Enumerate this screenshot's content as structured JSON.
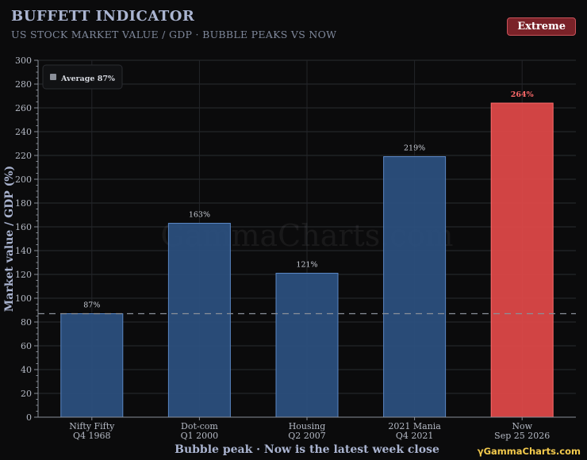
{
  "header": {
    "title": "BUFFETT INDICATOR",
    "subtitle": "US STOCK MARKET VALUE / GDP · BUBBLE PEAKS VS NOW",
    "badge": "Extreme"
  },
  "watermark": "GammaCharts.com",
  "brand": "GammaCharts.com",
  "colors": {
    "bar": "#2b4f7d",
    "bar_edge": "#5b87c4",
    "highlight": "#dc4848",
    "highlight_edge": "#ff6b6b",
    "highlight_label": "#ff6b6b",
    "average_line": "#8a8f99"
  },
  "chart_data": {
    "type": "bar",
    "title": "BUFFETT INDICATOR",
    "subtitle": "US STOCK MARKET VALUE / GDP · BUBBLE PEAKS VS NOW",
    "xlabel": "Bubble peak · Now is the latest week close",
    "ylabel": "Market value / GDP (%)",
    "ylim": [
      0,
      300
    ],
    "yticks": [
      0,
      20,
      40,
      60,
      80,
      100,
      120,
      140,
      160,
      180,
      200,
      220,
      240,
      260,
      280,
      300
    ],
    "grid": true,
    "legend": {
      "position": "top-left",
      "label": "Average 87%"
    },
    "average": 87,
    "categories": [
      {
        "line1": "Nifty Fifty",
        "line2": "Q4 1968"
      },
      {
        "line1": "Dot-com",
        "line2": "Q1 2000"
      },
      {
        "line1": "Housing",
        "line2": "Q2 2007"
      },
      {
        "line1": "2021 Mania",
        "line2": "Q4 2021"
      },
      {
        "line1": "Now",
        "line2": "Sep 25 2026"
      }
    ],
    "values": [
      87,
      163,
      121,
      219,
      264
    ],
    "value_labels": [
      "87%",
      "163%",
      "121%",
      "219%",
      "264%"
    ],
    "highlight_index": 4
  }
}
